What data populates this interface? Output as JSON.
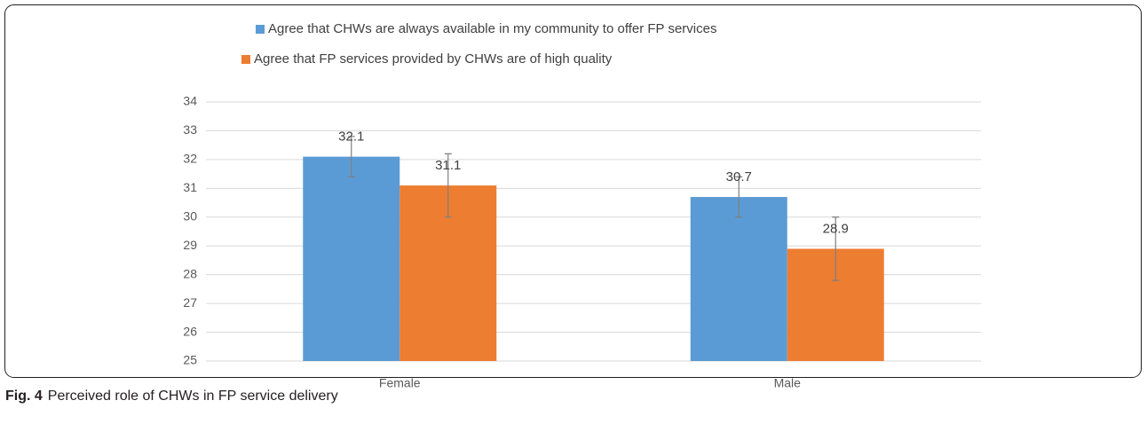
{
  "chart_data": {
    "type": "bar",
    "categories": [
      "Female",
      "Male"
    ],
    "series": [
      {
        "name": "Agree that CHWs are always available in my community to offer FP services",
        "color": "#5b9bd5",
        "values": [
          32.1,
          30.7
        ],
        "errors": [
          0.7,
          0.7
        ]
      },
      {
        "name": "Agree that FP services provided by CHWs are of high quality",
        "color": "#ed7d31",
        "values": [
          31.1,
          28.9
        ],
        "errors": [
          1.1,
          1.1
        ]
      }
    ],
    "ylim": [
      25,
      34
    ],
    "yticks": [
      25,
      26,
      27,
      28,
      29,
      30,
      31,
      32,
      33,
      34
    ],
    "grid": true,
    "legend": "top",
    "caption_label": "Fig. 4",
    "caption": "Perceived role of CHWs in FP service delivery"
  }
}
